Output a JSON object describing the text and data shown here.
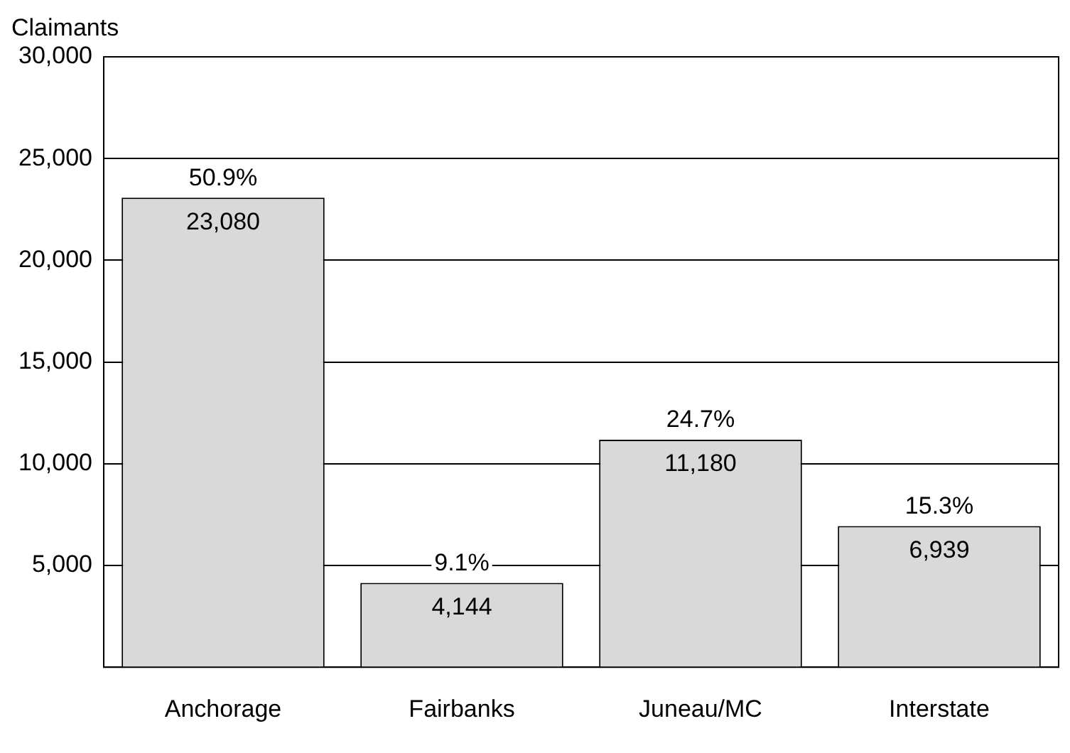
{
  "chart_data": {
    "type": "bar",
    "ylabel": "Claimants",
    "categories": [
      "Anchorage",
      "Fairbanks",
      "Juneau/MC",
      "Interstate"
    ],
    "values": [
      23080,
      4144,
      11180,
      6939
    ],
    "color": "#d9d9d9",
    "value_labels": [
      "23,080",
      "4,144",
      "11,180",
      "6,939"
    ],
    "ylim": [
      0,
      30000
    ],
    "yticks": [
      {
        "value": 5000,
        "label": "5,000"
      },
      {
        "value": 10000,
        "label": "10,000"
      },
      {
        "value": 15000,
        "label": "15,000"
      },
      {
        "value": 20000,
        "label": "20,000"
      },
      {
        "value": 25000,
        "label": "25,000"
      },
      {
        "value": 30000,
        "label": "30,000"
      }
    ],
    "grid": "y",
    "legend": false,
    "annotations": [
      {
        "text": "50.9%",
        "x": "Anchorage",
        "y": 23080
      },
      {
        "text": "9.1%",
        "x": "Fairbanks",
        "y": 4144
      },
      {
        "text": "24.7%",
        "x": "Juneau/MC",
        "y": 11180
      },
      {
        "text": "15.3%",
        "x": "Interstate",
        "y": 6939
      }
    ]
  }
}
